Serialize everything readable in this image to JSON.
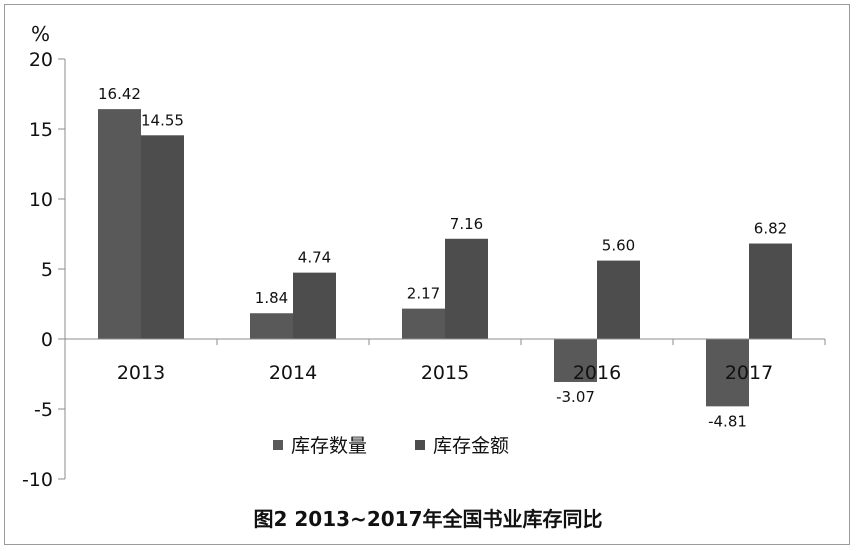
{
  "chart_data": {
    "type": "bar",
    "title": "图2  2013~2017年全国书业库存同比",
    "ylabel": "%",
    "xlabel": "",
    "ylim": [
      -10,
      20
    ],
    "yticks": [
      20,
      15,
      10,
      5,
      0,
      -5,
      -10
    ],
    "categories": [
      "2013",
      "2014",
      "2015",
      "2016",
      "2017"
    ],
    "series": [
      {
        "name": "库存数量",
        "values": [
          16.42,
          1.84,
          2.17,
          -3.07,
          -4.81
        ],
        "labels": [
          "16.42",
          "1.84",
          "2.17",
          "-3.07",
          "-4.81"
        ],
        "color": "#595959"
      },
      {
        "name": "库存金额",
        "values": [
          14.55,
          4.74,
          7.16,
          5.6,
          6.82
        ],
        "labels": [
          "14.55",
          "4.74",
          "7.16",
          "5.60",
          "6.82"
        ],
        "color": "#4d4d4d"
      }
    ],
    "grid": false,
    "legend": "bottom"
  }
}
